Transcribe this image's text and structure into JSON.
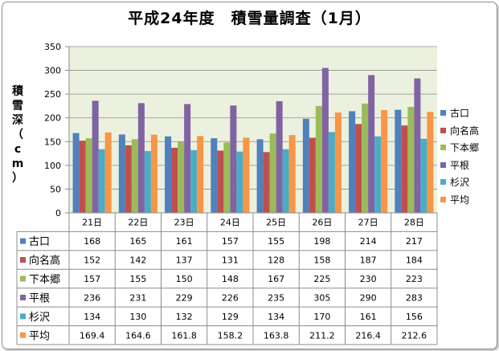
{
  "chart_data": {
    "type": "bar",
    "title": "平成24年度　積雪量調査（1月）",
    "ylabel": "積雪深（cm）",
    "ylim": [
      0,
      350
    ],
    "yticks": [
      0,
      50,
      100,
      150,
      200,
      250,
      300,
      350
    ],
    "grid": true,
    "legend_position": "right",
    "categories": [
      "21日",
      "22日",
      "23日",
      "24日",
      "25日",
      "26日",
      "27日",
      "28日"
    ],
    "series": [
      {
        "name": "古口",
        "color": "#4f81bd",
        "values": [
          168,
          165,
          161,
          157,
          155,
          198,
          214,
          217
        ]
      },
      {
        "name": "向名高",
        "color": "#c0504d",
        "values": [
          152,
          142,
          137,
          131,
          128,
          158,
          187,
          184
        ]
      },
      {
        "name": "下本郷",
        "color": "#9bbb59",
        "values": [
          157,
          155,
          150,
          148,
          167,
          225,
          230,
          223
        ]
      },
      {
        "name": "平根",
        "color": "#8064a2",
        "values": [
          236,
          231,
          229,
          226,
          235,
          305,
          290,
          283
        ]
      },
      {
        "name": "杉沢",
        "color": "#4bacc6",
        "values": [
          134,
          130,
          132,
          129,
          134,
          170,
          161,
          156
        ]
      },
      {
        "name": "平均",
        "color": "#f79646",
        "values": [
          "169.4",
          "164.6",
          "161.8",
          "158.2",
          "163.8",
          "211.2",
          "216.4",
          "212.6"
        ]
      }
    ]
  }
}
